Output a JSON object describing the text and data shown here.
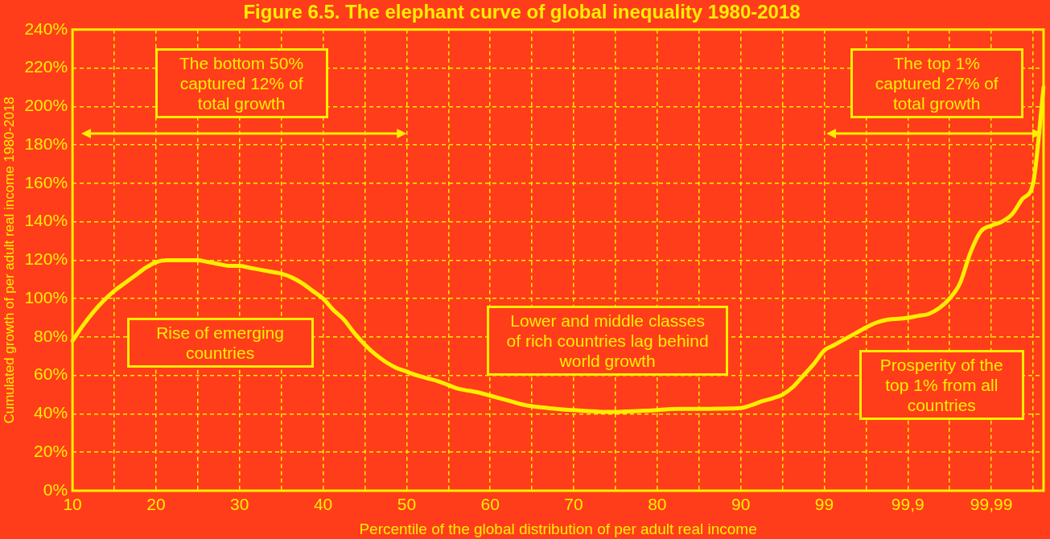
{
  "chart_data": {
    "type": "line",
    "title": "Figure 6.5. The elephant curve of global inequality 1980-2018",
    "xlabel": "Percentile of the global distribution of per adult real income",
    "ylabel": "Cumulated growth of per adult real income 1980-2018",
    "color": "#ffee00",
    "categories": [
      "10",
      null,
      null,
      null,
      null,
      null,
      null,
      null,
      "20",
      null,
      null,
      null,
      null,
      null,
      null,
      null,
      "30",
      null,
      null,
      null,
      null,
      null,
      null,
      null,
      "40",
      null,
      null,
      null,
      null,
      null,
      null,
      null,
      "50",
      null,
      null,
      null,
      null,
      null,
      null,
      null,
      "60",
      null,
      null,
      null,
      null,
      null,
      null,
      null,
      "70",
      null,
      null,
      null,
      null,
      null,
      null,
      null,
      "80",
      null,
      null,
      null,
      null,
      null,
      null,
      null,
      "90",
      null,
      null,
      null,
      null,
      null,
      null,
      null,
      "99",
      null,
      null,
      null,
      null,
      null,
      null,
      null,
      "99,9",
      null,
      null,
      null,
      null,
      null,
      null,
      null,
      "99,99",
      null,
      null,
      null,
      null,
      null
    ],
    "values": [
      78,
      86,
      93,
      99,
      104,
      108,
      112,
      116,
      119,
      120,
      120,
      120,
      120,
      119,
      118,
      117,
      117,
      116,
      115,
      114,
      113,
      111,
      108,
      104,
      100,
      94,
      89,
      82,
      76,
      71,
      67,
      64,
      62,
      60,
      58.5,
      57,
      55,
      53,
      52,
      51,
      49.5,
      48,
      46.5,
      45,
      44,
      43.3,
      42.8,
      42.3,
      42,
      41.6,
      41.3,
      41,
      41,
      41.2,
      41.4,
      41.7,
      42,
      42.4,
      42.6,
      42.6,
      42.6,
      42.6,
      42.7,
      42.8,
      43,
      44.5,
      46.5,
      48,
      50,
      54,
      60,
      66,
      73,
      76,
      79,
      82,
      85,
      87.5,
      89,
      89.5,
      90,
      91,
      92,
      95,
      100,
      108,
      124,
      135,
      138,
      140,
      144,
      152,
      160,
      210
    ],
    "ylim": [
      0,
      240
    ],
    "yticks": [
      {
        "value": 0,
        "label": "0%"
      },
      {
        "value": 20,
        "label": "20%"
      },
      {
        "value": 40,
        "label": "40%"
      },
      {
        "value": 60,
        "label": "60%"
      },
      {
        "value": 80,
        "label": "80%"
      },
      {
        "value": 100,
        "label": "100%"
      },
      {
        "value": 120,
        "label": "120%"
      },
      {
        "value": 140,
        "label": "140%"
      },
      {
        "value": 160,
        "label": "160%"
      },
      {
        "value": 180,
        "label": "180%"
      },
      {
        "value": 200,
        "label": "200%"
      },
      {
        "value": 220,
        "label": "220%"
      },
      {
        "value": 240,
        "label": "240%"
      }
    ],
    "grid": true,
    "marker": "none",
    "line_style": "solid",
    "annotations": [
      "The bottom 50% captured 12% of total growth",
      "The top 1% captured 27% of total growth",
      "Rise of emerging countries",
      "Lower and middle classes of rich countries lag behind world growth",
      "Prosperity of the top 1% from all countries"
    ]
  }
}
